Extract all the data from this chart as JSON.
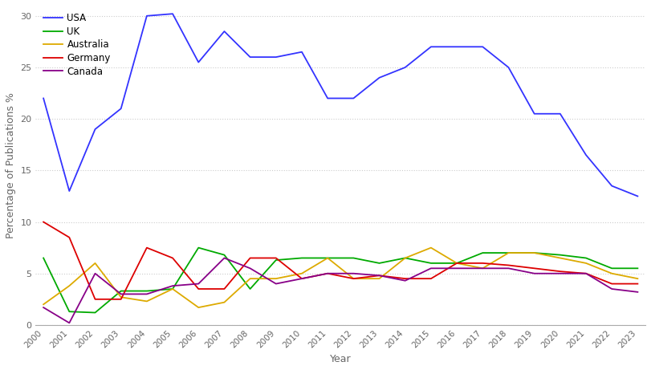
{
  "years": [
    2000,
    2001,
    2002,
    2003,
    2004,
    2005,
    2006,
    2007,
    2008,
    2009,
    2010,
    2011,
    2012,
    2013,
    2014,
    2015,
    2016,
    2017,
    2018,
    2019,
    2020,
    2021,
    2022,
    2023
  ],
  "USA": [
    22.0,
    13.0,
    19.0,
    21.0,
    30.0,
    30.2,
    25.5,
    28.5,
    26.0,
    26.0,
    26.5,
    22.0,
    22.0,
    24.0,
    25.0,
    27.0,
    27.0,
    27.0,
    25.0,
    20.5,
    20.5,
    16.5,
    13.5,
    12.5
  ],
  "UK": [
    6.5,
    1.3,
    1.2,
    3.3,
    3.3,
    3.5,
    7.5,
    6.8,
    3.5,
    6.3,
    6.5,
    6.5,
    6.5,
    6.0,
    6.5,
    6.0,
    6.0,
    7.0,
    7.0,
    7.0,
    6.8,
    6.5,
    5.5,
    5.5
  ],
  "Australia": [
    2.0,
    3.8,
    6.0,
    2.7,
    2.3,
    3.5,
    1.7,
    2.2,
    4.5,
    4.5,
    5.0,
    6.5,
    4.5,
    4.5,
    6.5,
    7.5,
    6.0,
    5.5,
    7.0,
    7.0,
    6.5,
    6.0,
    5.0,
    4.5
  ],
  "Germany": [
    10.0,
    8.5,
    2.5,
    2.5,
    7.5,
    6.5,
    3.5,
    3.5,
    6.5,
    6.5,
    4.5,
    5.0,
    4.5,
    4.8,
    4.5,
    4.5,
    6.0,
    6.0,
    5.8,
    5.5,
    5.2,
    5.0,
    4.0,
    4.0
  ],
  "Canada": [
    1.7,
    0.2,
    5.0,
    3.0,
    3.0,
    3.8,
    4.0,
    6.5,
    5.5,
    4.0,
    4.5,
    5.0,
    5.0,
    4.8,
    4.3,
    5.5,
    5.5,
    5.5,
    5.5,
    5.0,
    5.0,
    5.0,
    3.5,
    3.2
  ],
  "colors": {
    "USA": "#3333ff",
    "UK": "#00aa00",
    "Australia": "#ddaa00",
    "Germany": "#dd0000",
    "Canada": "#880088"
  },
  "xlabel": "Year",
  "ylabel": "Percentage of Publications %",
  "ylim": [
    0,
    31
  ],
  "yticks": [
    0,
    5,
    10,
    15,
    20,
    25,
    30
  ],
  "background_color": "#ffffff",
  "grid_color": "#cccccc"
}
